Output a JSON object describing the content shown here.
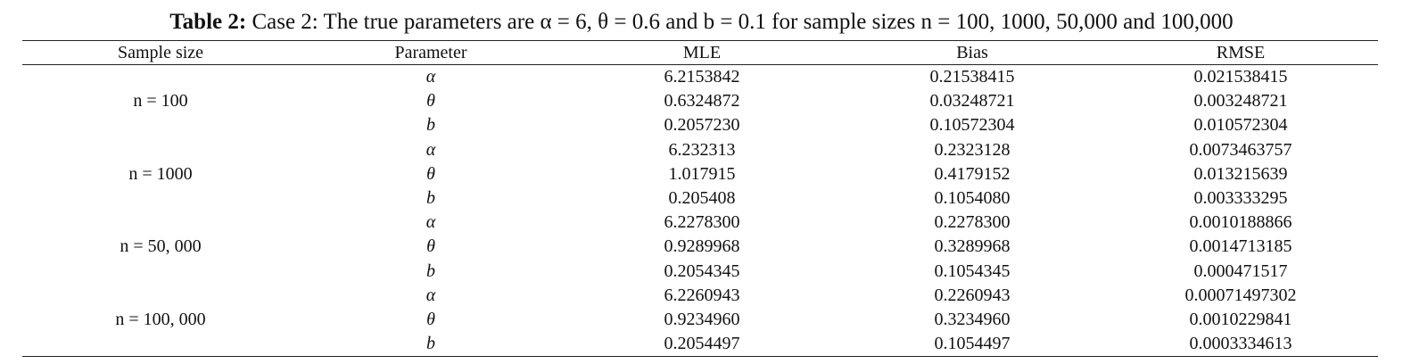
{
  "caption": {
    "label": "Table 2:",
    "text": "Case 2: The true parameters are α = 6, θ = 0.6 and b = 0.1 for sample sizes n = 100, 1000, 50,000 and 100,000"
  },
  "table": {
    "header": [
      "Sample size",
      "Parameter",
      "MLE",
      "Bias",
      "RMSE"
    ],
    "groups": [
      {
        "sample_size": "n = 100",
        "rows": [
          [
            "α",
            "6.2153842",
            "0.21538415",
            "0.021538415"
          ],
          [
            "θ",
            "0.6324872",
            "0.03248721",
            "0.003248721"
          ],
          [
            "b",
            "0.2057230",
            "0.10572304",
            "0.010572304"
          ]
        ]
      },
      {
        "sample_size": "n = 1000",
        "rows": [
          [
            "α",
            "6.232313",
            "0.2323128",
            "0.0073463757"
          ],
          [
            "θ",
            "1.017915",
            "0.4179152",
            "0.013215639"
          ],
          [
            "b",
            "0.205408",
            "0.1054080",
            "0.003333295"
          ]
        ]
      },
      {
        "sample_size": "n = 50, 000",
        "rows": [
          [
            "α",
            "6.2278300",
            "0.2278300",
            "0.0010188866"
          ],
          [
            "θ",
            "0.9289968",
            "0.3289968",
            "0.0014713185"
          ],
          [
            "b",
            "0.2054345",
            "0.1054345",
            "0.000471517"
          ]
        ]
      },
      {
        "sample_size": "n = 100, 000",
        "rows": [
          [
            "α",
            "6.2260943",
            "0.2260943",
            "0.00071497302"
          ],
          [
            "θ",
            "0.9234960",
            "0.3234960",
            "0.0010229841"
          ],
          [
            "b",
            "0.2054497",
            "0.1054497",
            "0.0003334613"
          ]
        ]
      }
    ]
  }
}
